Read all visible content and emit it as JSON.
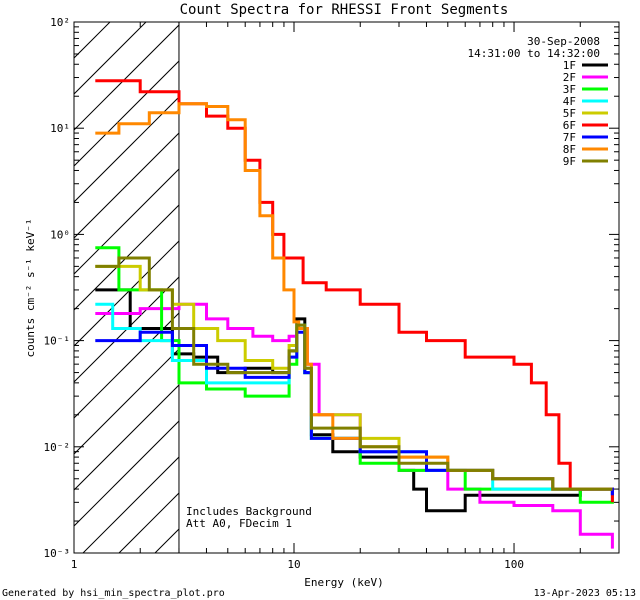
{
  "chart_data": {
    "type": "line",
    "title": "Count Spectra for RHESSI Front Segments",
    "xlabel": "Energy (keV)",
    "ylabel": "counts cm⁻² s⁻¹ keV⁻¹",
    "xscale": "log",
    "yscale": "log",
    "xlim": [
      1,
      300
    ],
    "ylim": [
      0.001,
      100
    ],
    "x_ticks": [
      {
        "value": 1,
        "label": "1"
      },
      {
        "value": 10,
        "label": "10"
      },
      {
        "value": 100,
        "label": "100"
      }
    ],
    "y_ticks": [
      {
        "value": 0.001,
        "label": "10⁻³"
      },
      {
        "value": 0.01,
        "label": "10⁻²"
      },
      {
        "value": 0.1,
        "label": "10⁻¹"
      },
      {
        "value": 1,
        "label": "10⁰"
      },
      {
        "value": 10,
        "label": "10¹"
      },
      {
        "value": 100,
        "label": "10²"
      }
    ],
    "shaded_region": {
      "from": 1,
      "to": 3,
      "pattern": "diagonal hatch"
    },
    "annotations": {
      "date": "30-Sep-2008",
      "time_range": "14:31:00 to 14:32:00",
      "background_note": "Includes Background",
      "attenuator_note": "Att A0, FDecim 1"
    },
    "series": [
      {
        "name": "1F",
        "color": "#000000",
        "points": [
          [
            1.25,
            0.3
          ],
          [
            1.8,
            0.13
          ],
          [
            2.8,
            0.075
          ],
          [
            3.5,
            0.07
          ],
          [
            4.5,
            0.05
          ],
          [
            6,
            0.055
          ],
          [
            8,
            0.05
          ],
          [
            9.5,
            0.08
          ],
          [
            10.3,
            0.16
          ],
          [
            11.2,
            0.05
          ],
          [
            12,
            0.013
          ],
          [
            15,
            0.009
          ],
          [
            20,
            0.008
          ],
          [
            30,
            0.006
          ],
          [
            35,
            0.004
          ],
          [
            40,
            0.0025
          ],
          [
            60,
            0.0035
          ],
          [
            100,
            0.0035
          ],
          [
            150,
            0.0035
          ],
          [
            200,
            0.004
          ],
          [
            280,
            0.0035
          ]
        ]
      },
      {
        "name": "2F",
        "color": "#ff00ff",
        "points": [
          [
            1.25,
            0.18
          ],
          [
            2,
            0.2
          ],
          [
            3,
            0.22
          ],
          [
            4,
            0.16
          ],
          [
            5,
            0.13
          ],
          [
            6.5,
            0.11
          ],
          [
            8,
            0.1
          ],
          [
            9.5,
            0.11
          ],
          [
            10.3,
            0.13
          ],
          [
            11.5,
            0.06
          ],
          [
            13,
            0.02
          ],
          [
            20,
            0.009
          ],
          [
            30,
            0.006
          ],
          [
            50,
            0.004
          ],
          [
            70,
            0.003
          ],
          [
            100,
            0.0028
          ],
          [
            150,
            0.0025
          ],
          [
            200,
            0.0015
          ],
          [
            280,
            0.0011
          ]
        ]
      },
      {
        "name": "3F",
        "color": "#00ff00",
        "points": [
          [
            1.25,
            0.75
          ],
          [
            1.6,
            0.3
          ],
          [
            2.5,
            0.1
          ],
          [
            3,
            0.04
          ],
          [
            4,
            0.035
          ],
          [
            6,
            0.03
          ],
          [
            8,
            0.03
          ],
          [
            9.5,
            0.06
          ],
          [
            10.3,
            0.13
          ],
          [
            11.2,
            0.05
          ],
          [
            12,
            0.012
          ],
          [
            20,
            0.007
          ],
          [
            30,
            0.006
          ],
          [
            60,
            0.004
          ],
          [
            100,
            0.004
          ],
          [
            200,
            0.003
          ],
          [
            280,
            0.0035
          ]
        ]
      },
      {
        "name": "4F",
        "color": "#00ffff",
        "points": [
          [
            1.25,
            0.22
          ],
          [
            1.5,
            0.13
          ],
          [
            2,
            0.1
          ],
          [
            2.8,
            0.065
          ],
          [
            4,
            0.04
          ],
          [
            6,
            0.04
          ],
          [
            8,
            0.04
          ],
          [
            9.5,
            0.07
          ],
          [
            10.3,
            0.14
          ],
          [
            11.2,
            0.05
          ],
          [
            12,
            0.012
          ],
          [
            20,
            0.009
          ],
          [
            40,
            0.006
          ],
          [
            80,
            0.004
          ],
          [
            150,
            0.004
          ],
          [
            280,
            0.0035
          ]
        ]
      },
      {
        "name": "5F",
        "color": "#cccc00",
        "points": [
          [
            1.25,
            0.5
          ],
          [
            2,
            0.3
          ],
          [
            2.8,
            0.22
          ],
          [
            3.5,
            0.13
          ],
          [
            4.5,
            0.1
          ],
          [
            6,
            0.065
          ],
          [
            8,
            0.055
          ],
          [
            9.5,
            0.09
          ],
          [
            10.3,
            0.13
          ],
          [
            11.2,
            0.055
          ],
          [
            12,
            0.02
          ],
          [
            20,
            0.012
          ],
          [
            30,
            0.008
          ],
          [
            50,
            0.006
          ],
          [
            80,
            0.005
          ],
          [
            150,
            0.004
          ],
          [
            280,
            0.004
          ]
        ]
      },
      {
        "name": "6F",
        "color": "#ff0000",
        "points": [
          [
            1.25,
            28
          ],
          [
            2,
            22
          ],
          [
            3,
            17
          ],
          [
            4,
            13
          ],
          [
            5,
            10
          ],
          [
            6,
            5
          ],
          [
            7,
            2
          ],
          [
            8,
            1
          ],
          [
            9,
            0.6
          ],
          [
            11,
            0.35
          ],
          [
            14,
            0.3
          ],
          [
            20,
            0.22
          ],
          [
            30,
            0.12
          ],
          [
            40,
            0.1
          ],
          [
            60,
            0.07
          ],
          [
            80,
            0.07
          ],
          [
            100,
            0.06
          ],
          [
            120,
            0.04
          ],
          [
            140,
            0.02
          ],
          [
            160,
            0.007
          ],
          [
            180,
            0.004
          ],
          [
            220,
            0.004
          ],
          [
            280,
            0.003
          ]
        ]
      },
      {
        "name": "7F",
        "color": "#0000ff",
        "points": [
          [
            1.25,
            0.1
          ],
          [
            2,
            0.12
          ],
          [
            2.8,
            0.09
          ],
          [
            4,
            0.055
          ],
          [
            6,
            0.045
          ],
          [
            8,
            0.045
          ],
          [
            9.5,
            0.07
          ],
          [
            10.3,
            0.12
          ],
          [
            11.2,
            0.05
          ],
          [
            12,
            0.012
          ],
          [
            20,
            0.009
          ],
          [
            40,
            0.006
          ],
          [
            80,
            0.005
          ],
          [
            150,
            0.004
          ],
          [
            280,
            0.0035
          ]
        ]
      },
      {
        "name": "8F",
        "color": "#ff8800",
        "points": [
          [
            1.25,
            9
          ],
          [
            1.6,
            11
          ],
          [
            2.2,
            14
          ],
          [
            3,
            17
          ],
          [
            4,
            16
          ],
          [
            5,
            12
          ],
          [
            6,
            4
          ],
          [
            7,
            1.5
          ],
          [
            8,
            0.6
          ],
          [
            9,
            0.3
          ],
          [
            10,
            0.15
          ],
          [
            10.5,
            0.13
          ],
          [
            11.5,
            0.06
          ],
          [
            12,
            0.02
          ],
          [
            15,
            0.012
          ],
          [
            20,
            0.01
          ],
          [
            30,
            0.008
          ],
          [
            50,
            0.006
          ],
          [
            80,
            0.005
          ],
          [
            150,
            0.004
          ],
          [
            280,
            0.004
          ]
        ]
      },
      {
        "name": "9F",
        "color": "#808000",
        "points": [
          [
            1.25,
            0.5
          ],
          [
            1.6,
            0.6
          ],
          [
            2.2,
            0.3
          ],
          [
            2.8,
            0.13
          ],
          [
            3.5,
            0.06
          ],
          [
            5,
            0.05
          ],
          [
            7,
            0.05
          ],
          [
            9.5,
            0.08
          ],
          [
            10.3,
            0.14
          ],
          [
            11.2,
            0.055
          ],
          [
            12,
            0.015
          ],
          [
            20,
            0.01
          ],
          [
            30,
            0.007
          ],
          [
            50,
            0.006
          ],
          [
            80,
            0.005
          ],
          [
            150,
            0.004
          ],
          [
            280,
            0.004
          ]
        ]
      }
    ]
  },
  "footer": {
    "left": "Generated by hsi_min_spectra_plot.pro",
    "right": "13-Apr-2023 05:13"
  }
}
